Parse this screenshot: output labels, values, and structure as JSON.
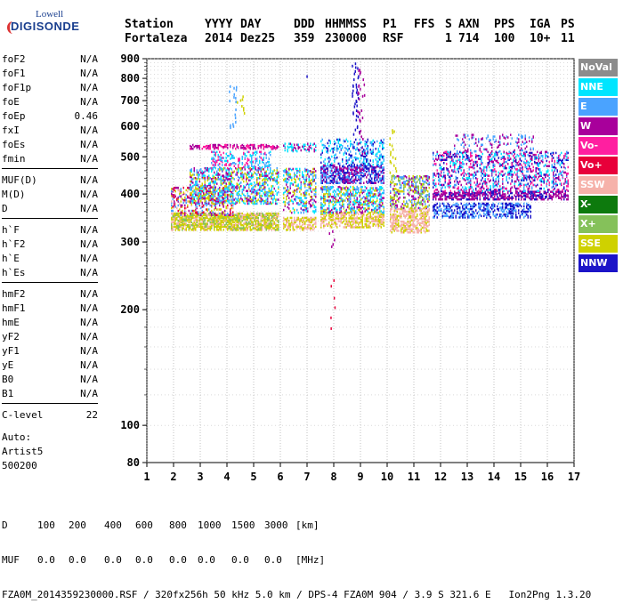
{
  "logo": {
    "line1": "Lowell",
    "line2": "DIGISONDE"
  },
  "header": {
    "row1": [
      "Station",
      "YYYY",
      "DAY",
      "DDD",
      "HHMMSS",
      "P1",
      "FFS",
      "S",
      "AXN",
      "PPS",
      "IGA",
      "PS"
    ],
    "row2": [
      "Fortaleza",
      "2014",
      "Dez25",
      "359",
      "230000",
      "RSF",
      "",
      "1",
      "714",
      "100",
      "10+",
      "11"
    ]
  },
  "params": {
    "group1": [
      {
        "k": "foF2",
        "v": "N/A"
      },
      {
        "k": "foF1",
        "v": "N/A"
      },
      {
        "k": "foF1p",
        "v": "N/A"
      },
      {
        "k": "foE",
        "v": "N/A"
      },
      {
        "k": "foEp",
        "v": "0.46"
      },
      {
        "k": "fxI",
        "v": "N/A"
      },
      {
        "k": "foEs",
        "v": "N/A"
      },
      {
        "k": "fmin",
        "v": "N/A"
      }
    ],
    "group2": [
      {
        "k": "MUF(D)",
        "v": "N/A"
      },
      {
        "k": "M(D)",
        "v": "N/A"
      },
      {
        "k": "D",
        "v": "N/A"
      }
    ],
    "group3": [
      {
        "k": "h`F",
        "v": "N/A"
      },
      {
        "k": "h`F2",
        "v": "N/A"
      },
      {
        "k": "h`E",
        "v": "N/A"
      },
      {
        "k": "h`Es",
        "v": "N/A"
      }
    ],
    "group4": [
      {
        "k": "hmF2",
        "v": "N/A"
      },
      {
        "k": "hmF1",
        "v": "N/A"
      },
      {
        "k": "hmE",
        "v": "N/A"
      },
      {
        "k": "yF2",
        "v": "N/A"
      },
      {
        "k": "yF1",
        "v": "N/A"
      },
      {
        "k": "yE",
        "v": "N/A"
      },
      {
        "k": "B0",
        "v": "N/A"
      },
      {
        "k": "B1",
        "v": "N/A"
      }
    ],
    "group5": [
      {
        "k": "C-level",
        "v": "22"
      }
    ]
  },
  "auto": {
    "line1": "Auto:",
    "line2": "Artist5",
    "line3": "500200"
  },
  "legend": [
    {
      "label": "NoVal",
      "color": "#8c8c8c"
    },
    {
      "label": "NNE",
      "color": "#00e5ff"
    },
    {
      "label": "E",
      "color": "#4aa3ff"
    },
    {
      "label": "W",
      "color": "#a8009b"
    },
    {
      "label": "Vo-",
      "color": "#ff1fa0"
    },
    {
      "label": "Vo+",
      "color": "#e8003a"
    },
    {
      "label": "SSW",
      "color": "#f6b2aa"
    },
    {
      "label": "X-",
      "color": "#0d7a0d"
    },
    {
      "label": "X+",
      "color": "#85c15a"
    },
    {
      "label": "SSE",
      "color": "#cfd100"
    },
    {
      "label": "NNW",
      "color": "#1c14c8"
    }
  ],
  "footer": {
    "row1": [
      "D",
      "100",
      "200",
      "400",
      "600",
      "800",
      "1000",
      "1500",
      "3000",
      "[km]"
    ],
    "row2": [
      "MUF",
      "0.0",
      "0.0",
      "0.0",
      "0.0",
      "0.0",
      "0.0",
      "0.0",
      "0.0",
      "[MHz]"
    ],
    "row3": "FZA0M_2014359230000.RSF / 320fx256h 50 kHz 5.0 km / DPS-4 FZA0M 904 / 3.9 S 321.6 E   Ion2Png 1.3.20"
  },
  "chart_data": {
    "type": "scatter",
    "xlim": [
      1,
      17
    ],
    "ylim": [
      80,
      900
    ],
    "y_scale": "log",
    "xticks": [
      1,
      2,
      3,
      4,
      5,
      6,
      7,
      8,
      9,
      10,
      11,
      12,
      13,
      14,
      15,
      16,
      17
    ],
    "yticks": [
      80,
      100,
      200,
      300,
      400,
      500,
      600,
      700,
      800,
      900
    ],
    "grid": true,
    "legend_position": "right",
    "bands": [
      {
        "x0": 1.9,
        "x1": 5.9,
        "y0": 325,
        "y1": 360,
        "colors": [
          "#cfd100",
          "#f6b2aa",
          "#cfd100",
          "#85c15a"
        ],
        "density": 0.75
      },
      {
        "x0": 1.9,
        "x1": 4.2,
        "y0": 355,
        "y1": 420,
        "colors": [
          "#f6b2aa",
          "#e8003a",
          "#a8009b",
          "#cfd100",
          "#4aa3ff"
        ],
        "density": 0.35
      },
      {
        "x0": 2.6,
        "x1": 5.9,
        "y0": 380,
        "y1": 470,
        "colors": [
          "#4aa3ff",
          "#00e5ff",
          "#a8009b",
          "#cfd100"
        ],
        "density": 0.35
      },
      {
        "x0": 3.4,
        "x1": 5.6,
        "y0": 470,
        "y1": 520,
        "colors": [
          "#4aa3ff",
          "#00e5ff",
          "#ff1fa0"
        ],
        "density": 0.2
      },
      {
        "x0": 2.6,
        "x1": 5.9,
        "y0": 528,
        "y1": 540,
        "colors": [
          "#a8009b",
          "#ff1fa0"
        ],
        "density": 0.35
      },
      {
        "x0": 6.1,
        "x1": 7.3,
        "y0": 325,
        "y1": 350,
        "colors": [
          "#cfd100",
          "#f6b2aa"
        ],
        "density": 0.6
      },
      {
        "x0": 6.1,
        "x1": 7.3,
        "y0": 360,
        "y1": 470,
        "colors": [
          "#4aa3ff",
          "#a8009b",
          "#cfd100",
          "#00e5ff"
        ],
        "density": 0.3
      },
      {
        "x0": 6.1,
        "x1": 7.3,
        "y0": 520,
        "y1": 545,
        "colors": [
          "#a8009b",
          "#00e5ff"
        ],
        "density": 0.25
      },
      {
        "x0": 7.5,
        "x1": 9.9,
        "y0": 330,
        "y1": 360,
        "colors": [
          "#f6b2aa",
          "#cfd100"
        ],
        "density": 0.55
      },
      {
        "x0": 7.5,
        "x1": 9.9,
        "y0": 360,
        "y1": 420,
        "colors": [
          "#4aa3ff",
          "#00e5ff",
          "#cfd100",
          "#a8009b"
        ],
        "density": 0.4
      },
      {
        "x0": 7.5,
        "x1": 9.9,
        "y0": 430,
        "y1": 480,
        "colors": [
          "#1c14c8",
          "#a8009b",
          "#4aa3ff"
        ],
        "density": 0.5
      },
      {
        "x0": 7.5,
        "x1": 9.9,
        "y0": 480,
        "y1": 560,
        "colors": [
          "#1c14c8",
          "#4aa3ff",
          "#00e5ff"
        ],
        "density": 0.18
      },
      {
        "x0": 10.1,
        "x1": 11.6,
        "y0": 320,
        "y1": 370,
        "colors": [
          "#f6b2aa",
          "#f6b2aa",
          "#cfd100"
        ],
        "density": 0.55
      },
      {
        "x0": 10.1,
        "x1": 11.6,
        "y0": 370,
        "y1": 450,
        "colors": [
          "#cfd100",
          "#4aa3ff",
          "#85c15a",
          "#a8009b"
        ],
        "density": 0.35
      },
      {
        "x0": 11.7,
        "x1": 15.4,
        "y0": 350,
        "y1": 380,
        "colors": [
          "#1c14c8",
          "#4aa3ff"
        ],
        "density": 0.4
      },
      {
        "x0": 11.7,
        "x1": 16.8,
        "y0": 390,
        "y1": 410,
        "colors": [
          "#a8009b",
          "#a8009b",
          "#1c14c8"
        ],
        "density": 0.55
      },
      {
        "x0": 11.7,
        "x1": 16.8,
        "y0": 410,
        "y1": 520,
        "colors": [
          "#1c14c8",
          "#a8009b",
          "#4aa3ff",
          "#00e5ff",
          "#ff1fa0"
        ],
        "density": 0.25
      },
      {
        "x0": 12.5,
        "x1": 15.5,
        "y0": 520,
        "y1": 575,
        "colors": [
          "#a8009b",
          "#4aa3ff"
        ],
        "density": 0.1
      }
    ],
    "streaks": [
      {
        "x": 4.2,
        "y0": 600,
        "y1": 780,
        "color": "#4aa3ff"
      },
      {
        "x": 4.5,
        "y0": 650,
        "y1": 740,
        "color": "#cfd100"
      },
      {
        "x": 7.0,
        "y0": 815,
        "y1": 825,
        "color": "#1c14c8"
      },
      {
        "x": 7.9,
        "y0": 180,
        "y1": 240,
        "color": "#e8003a"
      },
      {
        "x": 7.9,
        "y0": 290,
        "y1": 330,
        "color": "#a8009b"
      },
      {
        "x": 8.8,
        "y0": 560,
        "y1": 880,
        "color": "#1c14c8"
      },
      {
        "x": 9.0,
        "y0": 500,
        "y1": 850,
        "color": "#a8009b"
      },
      {
        "x": 10.2,
        "y0": 450,
        "y1": 600,
        "color": "#cfd100"
      }
    ]
  }
}
